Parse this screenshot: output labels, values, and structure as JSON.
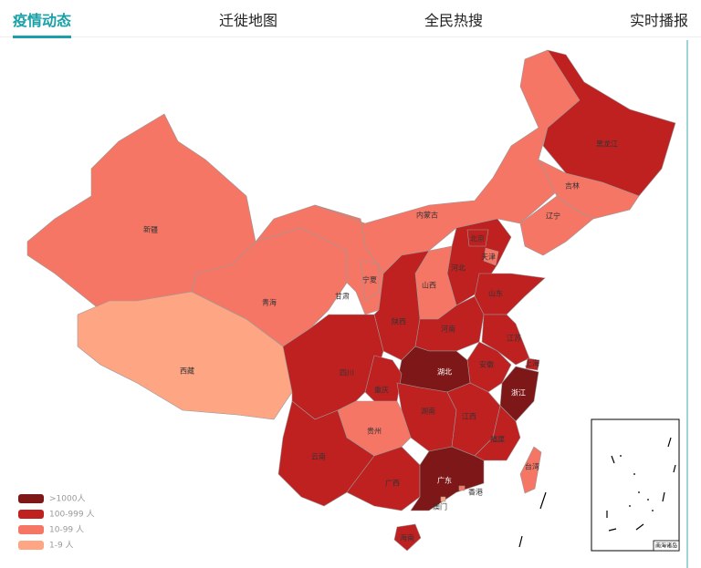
{
  "tabs": [
    "疫情动态",
    "迁徙地图",
    "全民热搜",
    "实时播报"
  ],
  "legend": [
    {
      "label": ">1000人",
      "color": "#7d1718"
    },
    {
      "label": "100-999 人",
      "color": "#bf2121"
    },
    {
      "label": "10-99 人",
      "color": "#f57665"
    },
    {
      "label": "1-9 人",
      "color": "#fea583"
    }
  ],
  "regions": [
    {
      "name": "新疆",
      "color": "#f57665"
    },
    {
      "name": "西藏",
      "color": "#fea583"
    },
    {
      "name": "青海",
      "color": "#f57665"
    },
    {
      "name": "甘肃",
      "color": "#f57665"
    },
    {
      "name": "内蒙古",
      "color": "#f57665"
    },
    {
      "name": "黑龙江",
      "color": "#bf2121"
    },
    {
      "name": "吉林",
      "color": "#f57665"
    },
    {
      "name": "辽宁",
      "color": "#f57665"
    },
    {
      "name": "河北",
      "color": "#bf2121"
    },
    {
      "name": "北京",
      "color": "#bf2121"
    },
    {
      "name": "天津",
      "color": "#f57665"
    },
    {
      "name": "山西",
      "color": "#f57665"
    },
    {
      "name": "宁夏",
      "color": "#f57665"
    },
    {
      "name": "陕西",
      "color": "#bf2121"
    },
    {
      "name": "山东",
      "color": "#bf2121"
    },
    {
      "name": "河南",
      "color": "#bf2121"
    },
    {
      "name": "江苏",
      "color": "#bf2121"
    },
    {
      "name": "安徽",
      "color": "#bf2121"
    },
    {
      "name": "上海",
      "color": "#bf2121"
    },
    {
      "name": "浙江",
      "color": "#7d1718"
    },
    {
      "name": "湖北",
      "color": "#7d1718"
    },
    {
      "name": "四川",
      "color": "#bf2121"
    },
    {
      "name": "重庆",
      "color": "#bf2121"
    },
    {
      "name": "湖南",
      "color": "#bf2121"
    },
    {
      "name": "江西",
      "color": "#bf2121"
    },
    {
      "name": "福建",
      "color": "#bf2121"
    },
    {
      "name": "贵州",
      "color": "#f57665"
    },
    {
      "name": "云南",
      "color": "#bf2121"
    },
    {
      "name": "广西",
      "color": "#bf2121"
    },
    {
      "name": "广东",
      "color": "#7d1718"
    },
    {
      "name": "台湾",
      "color": "#f57665"
    },
    {
      "name": "海南",
      "color": "#bf2121"
    },
    {
      "name": "香港",
      "color": "#f57665"
    },
    {
      "name": "澳门",
      "color": "#fea583"
    }
  ],
  "inset_label": "南海诸岛"
}
